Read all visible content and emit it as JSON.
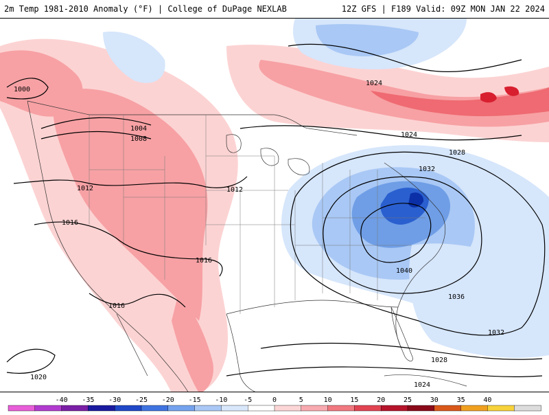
{
  "title": {
    "left": "2m Temp 1981-2010 Anomaly (°F) | College of DuPage NEXLAB",
    "right": "12Z GFS | F189 Valid: 09Z MON JAN 22 2024"
  },
  "map": {
    "isobar_labels": [
      "1000",
      "1004",
      "1008",
      "1012",
      "1012",
      "1016",
      "1016",
      "1016",
      "1020",
      "1024",
      "1024",
      "1028",
      "1032",
      "1040",
      "1036",
      "1032",
      "1028",
      "1024"
    ],
    "colors": {
      "warm_light": "#fcd3d3",
      "warm_mid": "#f7a1a4",
      "warm_strong": "#ef6a72",
      "warm_deep": "#d81f2f",
      "cold_light": "#d6e6fb",
      "cold_mid": "#a9c8f5",
      "cold_strong": "#6f9ee6",
      "cold_deep": "#2a5fcf",
      "cold_core": "#0b2fa6"
    }
  },
  "colorbar": {
    "tick_labels": [
      "-40",
      "-35",
      "-30",
      "-25",
      "-20",
      "-15",
      "-10",
      "-5",
      "0",
      "5",
      "10",
      "15",
      "20",
      "25",
      "30",
      "35",
      "40"
    ],
    "colors": [
      "#e85ed8",
      "#b13bcf",
      "#7a1fa6",
      "#1a1aa0",
      "#1f47c7",
      "#3f73e0",
      "#74a2ee",
      "#aac8f5",
      "#d9e7fb",
      "#ffffff",
      "#fcd6d6",
      "#f8aab0",
      "#f17980",
      "#e14452",
      "#b5142a",
      "#8a0a1a",
      "#d9581a",
      "#f0a020",
      "#f7d23a",
      "#dcdcdc"
    ]
  }
}
